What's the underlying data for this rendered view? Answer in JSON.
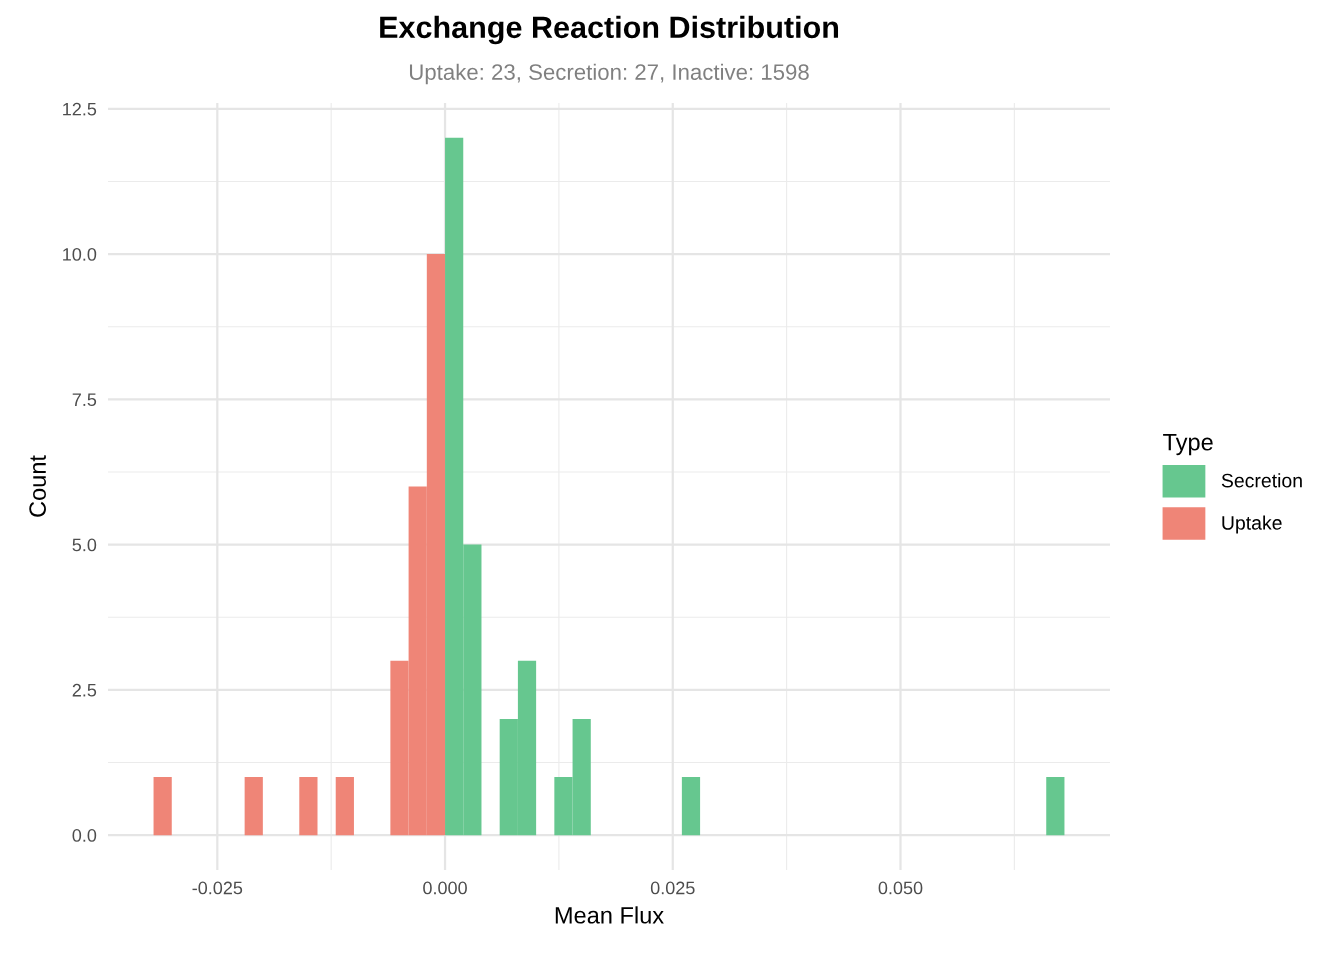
{
  "chart_data": {
    "type": "histogram",
    "title": "Exchange Reaction Distribution",
    "subtitle": "Uptake: 23, Secretion: 27, Inactive: 1598",
    "xlabel": "Mean Flux",
    "ylabel": "Count",
    "legend_title": "Type",
    "bins": [
      -0.032,
      -0.03,
      -0.028,
      -0.026,
      -0.024,
      -0.022,
      -0.02,
      -0.018,
      -0.016,
      -0.014,
      -0.012,
      -0.01,
      -0.008,
      -0.006,
      -0.004,
      -0.002,
      0.0,
      0.002,
      0.004,
      0.006,
      0.008,
      0.01,
      0.012,
      0.014,
      0.016,
      0.018,
      0.02,
      0.022,
      0.024,
      0.026,
      0.028,
      0.03,
      0.032,
      0.034,
      0.036,
      0.038,
      0.04,
      0.042,
      0.044,
      0.046,
      0.048,
      0.05,
      0.052,
      0.054,
      0.056,
      0.058,
      0.06,
      0.062,
      0.064,
      0.066,
      0.068
    ],
    "series": [
      {
        "name": "Secretion",
        "color": "#66c78f",
        "values": [
          0,
          0,
          0,
          0,
          0,
          0,
          0,
          0,
          0,
          0,
          0,
          0,
          0,
          0,
          0,
          0,
          12,
          5,
          0,
          2,
          3,
          0,
          1,
          2,
          0,
          0,
          0,
          0,
          0,
          1,
          0,
          0,
          0,
          0,
          0,
          0,
          0,
          0,
          0,
          0,
          0,
          0,
          0,
          0,
          0,
          0,
          0,
          0,
          0,
          1
        ]
      },
      {
        "name": "Uptake",
        "color": "#ef8577",
        "values": [
          1,
          0,
          0,
          0,
          0,
          1,
          0,
          0,
          1,
          0,
          1,
          0,
          0,
          3,
          6,
          10,
          0,
          0,
          0,
          0,
          0,
          0,
          0,
          0,
          0,
          0,
          0,
          0,
          0,
          0,
          0,
          0,
          0,
          0,
          0,
          0,
          0,
          0,
          0,
          0,
          0,
          0,
          0,
          0,
          0,
          0,
          0,
          0,
          0,
          0
        ]
      }
    ],
    "xlim": [
      -0.037,
      0.073
    ],
    "ylim": [
      -0.6,
      12.6
    ],
    "xticks": [
      {
        "value": -0.025,
        "label": "-0.025"
      },
      {
        "value": 0,
        "label": "0.000"
      },
      {
        "value": 0.025,
        "label": "0.025"
      },
      {
        "value": 0.05,
        "label": "0.050"
      }
    ],
    "yticks": [
      {
        "value": 0,
        "label": "0.0"
      },
      {
        "value": 2.5,
        "label": "2.5"
      },
      {
        "value": 5,
        "label": "5.0"
      },
      {
        "value": 7.5,
        "label": "7.5"
      },
      {
        "value": 10,
        "label": "10.0"
      },
      {
        "value": 12.5,
        "label": "12.5"
      }
    ],
    "grid": true,
    "legend": "right"
  }
}
